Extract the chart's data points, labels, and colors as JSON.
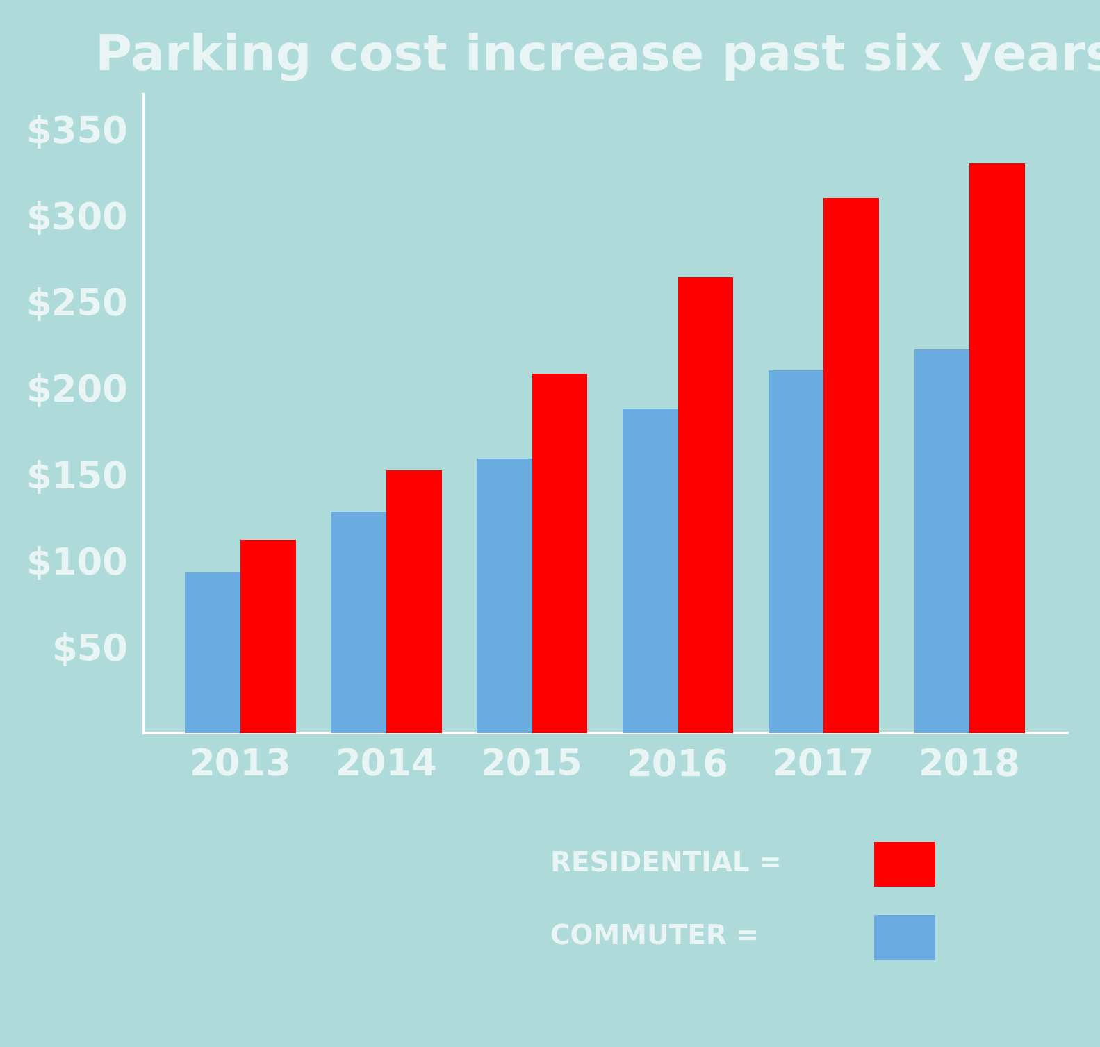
{
  "title": "Parking cost increase past six years",
  "years": [
    "2013",
    "2014",
    "2015",
    "2016",
    "2017",
    "2018"
  ],
  "residential": [
    112,
    152,
    208,
    264,
    310,
    330
  ],
  "commuter": [
    93,
    128,
    159,
    188,
    210,
    222
  ],
  "bar_color_residential": "#FF0000",
  "bar_color_commuter": "#6AACDF",
  "background_color": "#AEDBD9",
  "text_color": "#E8F5F4",
  "axis_color": "#FFFFFF",
  "title_fontsize": 52,
  "tick_fontsize": 38,
  "legend_fontsize": 28,
  "ylabel_ticks": [
    50,
    100,
    150,
    200,
    250,
    300,
    350
  ],
  "ylim": [
    0,
    370
  ],
  "bar_width": 0.38
}
